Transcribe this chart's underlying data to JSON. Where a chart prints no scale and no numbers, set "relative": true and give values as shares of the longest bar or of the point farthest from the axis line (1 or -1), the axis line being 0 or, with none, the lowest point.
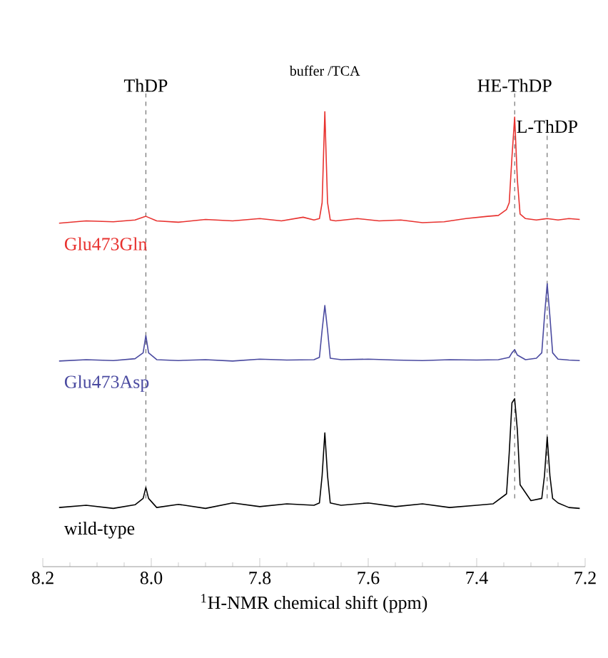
{
  "chart_data": {
    "type": "line",
    "relative": true,
    "xlabel": "$^{1}$H-NMR chemical shift (ppm)",
    "xlim": [
      8.2,
      7.2
    ],
    "xticks": [
      {
        "value": 8.2,
        "label": "8.2"
      },
      {
        "value": 8.0,
        "label": "8.0"
      },
      {
        "value": 7.8,
        "label": "7.8"
      },
      {
        "value": 7.6,
        "label": "7.6"
      },
      {
        "value": 7.4,
        "label": "7.4"
      },
      {
        "value": 7.2,
        "label": "7.2"
      }
    ],
    "grid": false,
    "marker": "none",
    "line_style": "solid",
    "series": [
      {
        "name": "Glu473Gln",
        "color": "#e8322f",
        "x": [
          8.17,
          8.12,
          8.07,
          8.03,
          8.01,
          7.99,
          7.95,
          7.9,
          7.85,
          7.8,
          7.76,
          7.72,
          7.7,
          7.69,
          7.685,
          7.68,
          7.675,
          7.67,
          7.66,
          7.62,
          7.58,
          7.54,
          7.5,
          7.46,
          7.42,
          7.38,
          7.36,
          7.345,
          7.34,
          7.335,
          7.33,
          7.325,
          7.32,
          7.31,
          7.29,
          7.27,
          7.25,
          7.23,
          7.21
        ],
        "values": [
          0.755,
          0.76,
          0.758,
          0.762,
          0.77,
          0.76,
          0.757,
          0.763,
          0.76,
          0.765,
          0.76,
          0.768,
          0.762,
          0.765,
          0.8,
          1.0,
          0.8,
          0.762,
          0.76,
          0.765,
          0.76,
          0.762,
          0.756,
          0.758,
          0.765,
          0.77,
          0.772,
          0.785,
          0.8,
          0.9,
          0.988,
          0.85,
          0.775,
          0.765,
          0.762,
          0.765,
          0.762,
          0.765,
          0.763
        ]
      },
      {
        "name": "Glu473Asp",
        "color": "#4a4aa0",
        "x": [
          8.17,
          8.12,
          8.07,
          8.03,
          8.015,
          8.01,
          8.005,
          7.99,
          7.95,
          7.9,
          7.85,
          7.8,
          7.75,
          7.7,
          7.69,
          7.685,
          7.68,
          7.675,
          7.67,
          7.65,
          7.6,
          7.55,
          7.5,
          7.45,
          7.4,
          7.36,
          7.34,
          7.335,
          7.33,
          7.325,
          7.31,
          7.29,
          7.28,
          7.275,
          7.27,
          7.265,
          7.26,
          7.25,
          7.23,
          7.21
        ],
        "values": [
          0.452,
          0.455,
          0.453,
          0.457,
          0.47,
          0.508,
          0.47,
          0.455,
          0.453,
          0.455,
          0.452,
          0.456,
          0.454,
          0.455,
          0.46,
          0.52,
          0.574,
          0.52,
          0.458,
          0.455,
          0.456,
          0.454,
          0.453,
          0.455,
          0.454,
          0.455,
          0.46,
          0.47,
          0.477,
          0.465,
          0.455,
          0.458,
          0.47,
          0.55,
          0.622,
          0.55,
          0.47,
          0.456,
          0.454,
          0.453
        ]
      },
      {
        "name": "wild-type",
        "color": "#000000",
        "x": [
          8.17,
          8.12,
          8.07,
          8.03,
          8.015,
          8.01,
          8.005,
          7.99,
          7.95,
          7.9,
          7.85,
          7.8,
          7.75,
          7.7,
          7.69,
          7.685,
          7.68,
          7.675,
          7.67,
          7.65,
          7.6,
          7.55,
          7.5,
          7.45,
          7.4,
          7.37,
          7.345,
          7.34,
          7.335,
          7.33,
          7.325,
          7.32,
          7.3,
          7.28,
          7.275,
          7.27,
          7.265,
          7.26,
          7.25,
          7.23,
          7.21
        ],
        "values": [
          0.13,
          0.135,
          0.128,
          0.136,
          0.15,
          0.174,
          0.15,
          0.13,
          0.137,
          0.128,
          0.14,
          0.132,
          0.138,
          0.135,
          0.14,
          0.2,
          0.294,
          0.2,
          0.14,
          0.135,
          0.14,
          0.132,
          0.138,
          0.13,
          0.135,
          0.138,
          0.16,
          0.25,
          0.36,
          0.369,
          0.3,
          0.18,
          0.145,
          0.15,
          0.2,
          0.285,
          0.2,
          0.15,
          0.14,
          0.13,
          0.128
        ]
      }
    ],
    "ref_lines": [
      {
        "axis": "x",
        "value": 8.01,
        "label": "ThDP",
        "color": "#555555",
        "line_style": "dashed"
      },
      {
        "axis": "x",
        "value": 7.33,
        "label": "HE-ThDP",
        "color": "#555555",
        "line_style": "dashed"
      },
      {
        "axis": "x",
        "value": 7.27,
        "label": "L-ThDP",
        "color": "#555555",
        "line_style": "dashed"
      }
    ],
    "annotations": [
      {
        "text": "buffer /TCA",
        "x": 7.68,
        "y": 1.0
      }
    ]
  }
}
